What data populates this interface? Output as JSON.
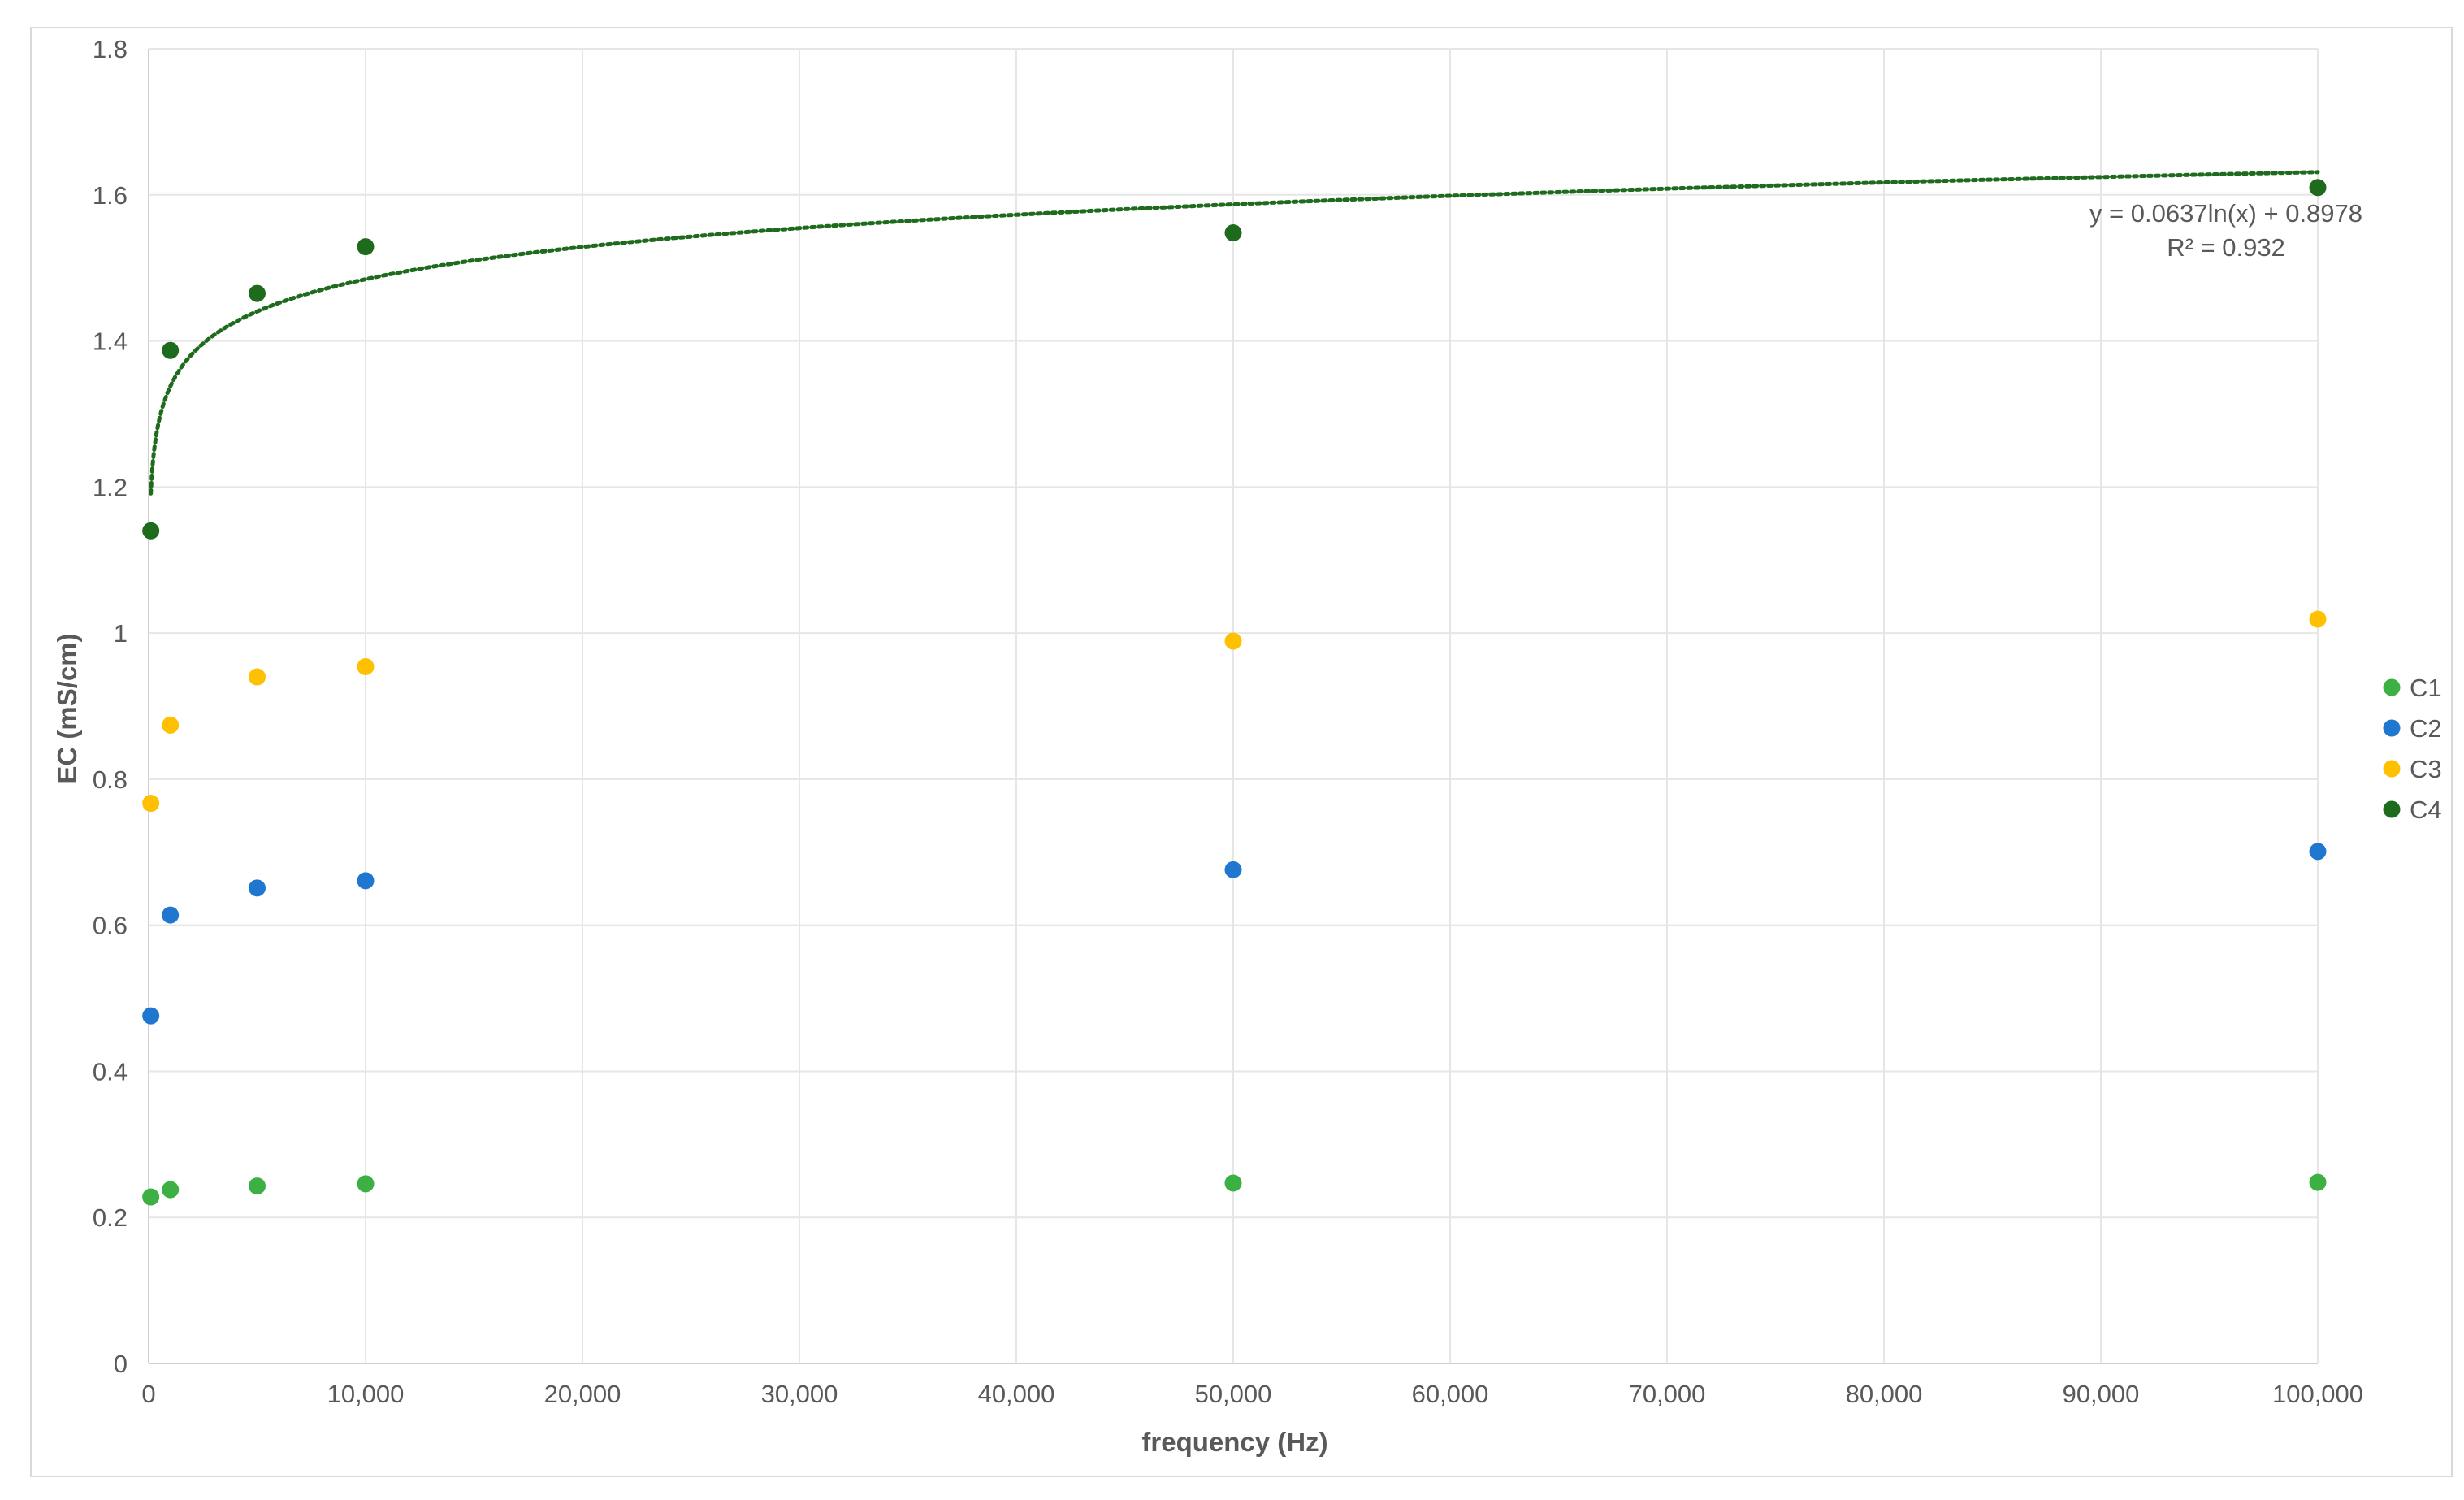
{
  "chart_data": {
    "type": "scatter",
    "xlabel": "frequency (Hz)",
    "ylabel": "EC (mS/cm)",
    "xlim": [
      0,
      100000
    ],
    "ylim": [
      0,
      1.8
    ],
    "x_ticks": [
      0,
      10000,
      20000,
      30000,
      40000,
      50000,
      60000,
      70000,
      80000,
      90000,
      100000
    ],
    "x_tick_labels": [
      "0",
      "10,000",
      "20,000",
      "30,000",
      "40,000",
      "50,000",
      "60,000",
      "70,000",
      "80,000",
      "90,000",
      "100,000"
    ],
    "y_ticks": [
      0,
      0.2,
      0.4,
      0.6,
      0.8,
      1,
      1.2,
      1.4,
      1.6,
      1.8
    ],
    "y_tick_labels": [
      "0",
      "0.2",
      "0.4",
      "0.6",
      "0.8",
      "1",
      "1.2",
      "1.4",
      "1.6",
      "1.8"
    ],
    "grid": true,
    "legend": "right",
    "series": [
      {
        "name": "C1",
        "color": "#3cb043",
        "x": [
          100,
          1000,
          5000,
          10000,
          50000,
          100000
        ],
        "y": [
          0.228,
          0.238,
          0.243,
          0.246,
          0.247,
          0.248
        ]
      },
      {
        "name": "C2",
        "color": "#1f77d0",
        "x": [
          100,
          1000,
          5000,
          10000,
          50000,
          100000
        ],
        "y": [
          0.476,
          0.614,
          0.651,
          0.661,
          0.676,
          0.701
        ]
      },
      {
        "name": "C3",
        "color": "#ffc000",
        "x": [
          100,
          1000,
          5000,
          10000,
          50000,
          100000
        ],
        "y": [
          0.767,
          0.874,
          0.94,
          0.954,
          0.989,
          1.019
        ]
      },
      {
        "name": "C4",
        "color": "#1e6b1e",
        "x": [
          100,
          1000,
          5000,
          10000,
          50000,
          100000
        ],
        "y": [
          1.14,
          1.387,
          1.465,
          1.529,
          1.548,
          1.61
        ]
      }
    ],
    "trendline": {
      "series": "C4",
      "type": "logarithmic",
      "a": 0.0637,
      "b": 0.8978,
      "color": "#1e6b1e",
      "equation": "y = 0.0637ln(x) + 0.8978",
      "r_squared": "R² = 0.932"
    }
  }
}
